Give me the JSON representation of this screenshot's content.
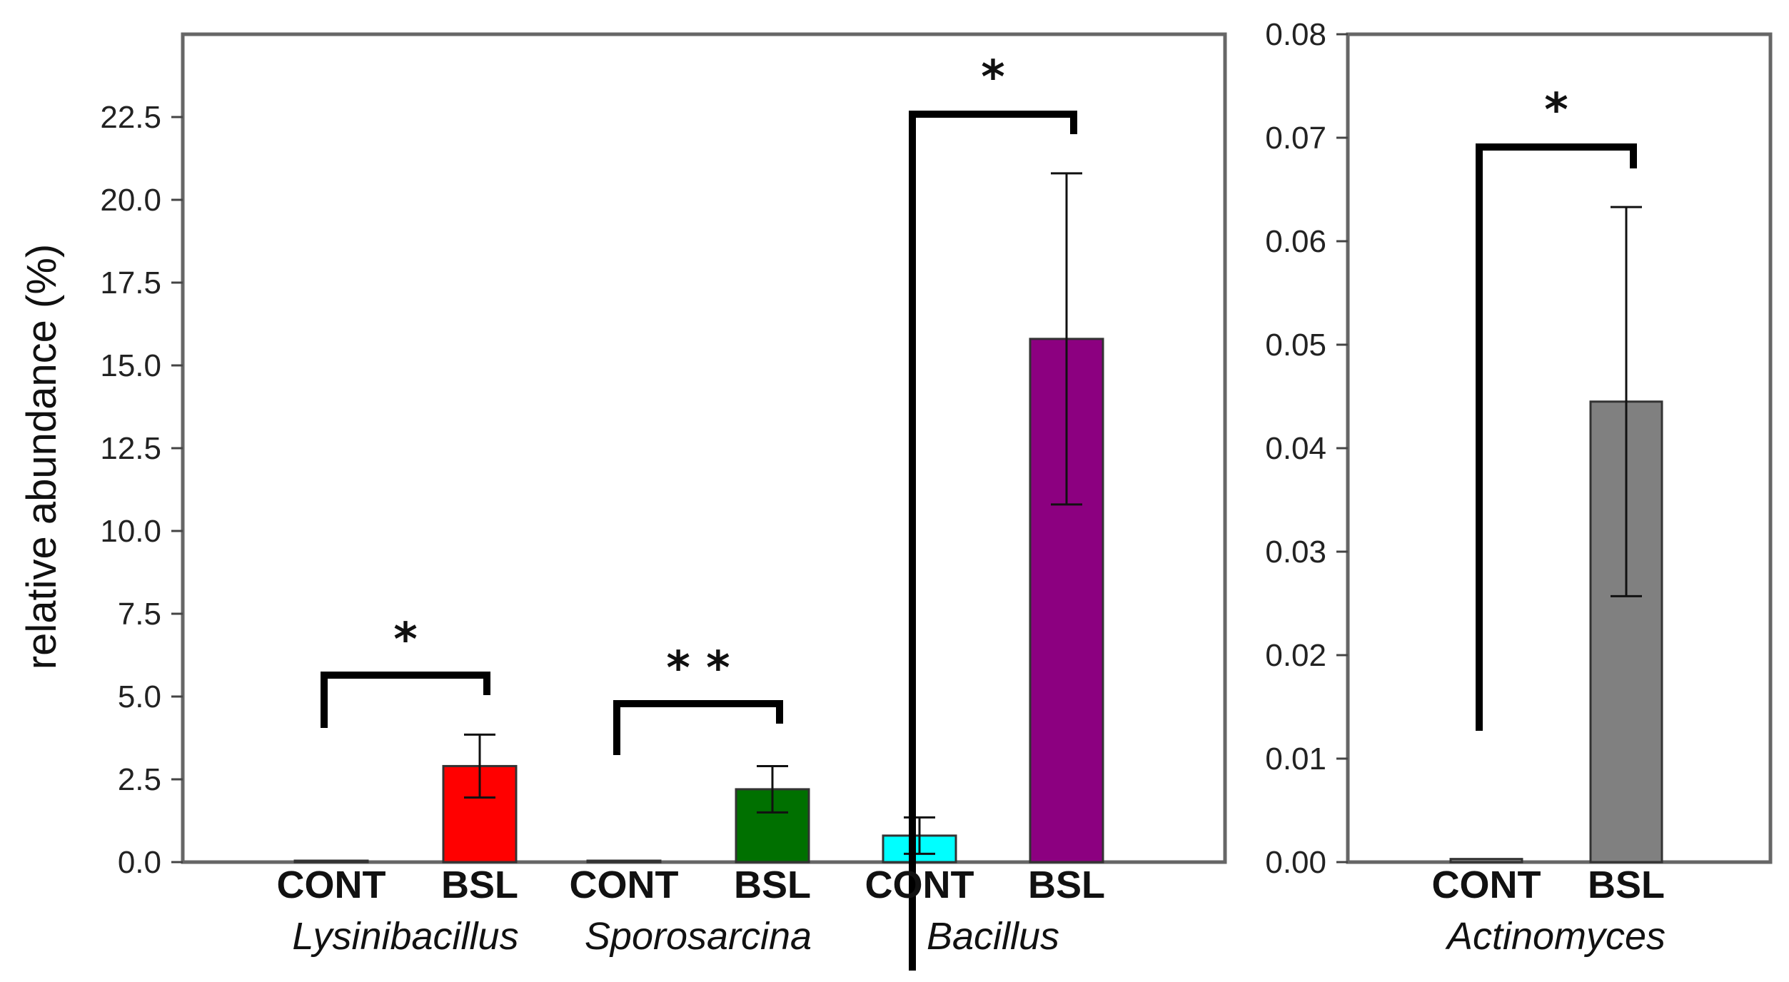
{
  "chart_data": [
    {
      "type": "bar",
      "ylabel": "relative abundance (%)",
      "ylim": [
        0,
        25
      ],
      "yticks": [
        "0.0",
        "2.5",
        "5.0",
        "7.5",
        "10.0",
        "12.5",
        "15.0",
        "17.5",
        "20.0",
        "22.5"
      ],
      "ytick_values": [
        0,
        2.5,
        5,
        7.5,
        10,
        12.5,
        15,
        17.5,
        20,
        22.5
      ],
      "groups": [
        {
          "genus": "Lysinibacillus",
          "bars": [
            {
              "label": "CONT",
              "value": 0.02,
              "error": 0,
              "color": "#ff0000"
            },
            {
              "label": "BSL",
              "value": 2.9,
              "error": 0.95,
              "color": "#ff0000"
            }
          ],
          "significance": "*"
        },
        {
          "genus": "Sporosarcina",
          "bars": [
            {
              "label": "CONT",
              "value": 0.02,
              "error": 0,
              "color": "#007000"
            },
            {
              "label": "BSL",
              "value": 2.2,
              "error": 0.7,
              "color": "#007000"
            }
          ],
          "significance": "* *"
        },
        {
          "genus": "Bacillus",
          "bars": [
            {
              "label": "CONT",
              "value": 0.8,
              "error": 0.55,
              "color": "#00ffff"
            },
            {
              "label": "BSL",
              "value": 15.8,
              "error": 5.0,
              "color": "#8c0080"
            }
          ],
          "significance": "*"
        }
      ]
    },
    {
      "type": "bar",
      "ylabel": "",
      "ylim": [
        0,
        0.08
      ],
      "yticks": [
        "0.00",
        "0.01",
        "0.02",
        "0.03",
        "0.04",
        "0.05",
        "0.06",
        "0.07",
        "0.08"
      ],
      "ytick_values": [
        0,
        0.01,
        0.02,
        0.03,
        0.04,
        0.05,
        0.06,
        0.07,
        0.08
      ],
      "groups": [
        {
          "genus": "Actinomyces",
          "bars": [
            {
              "label": "CONT",
              "value": 0.0003,
              "error": 0,
              "color": "#808080"
            },
            {
              "label": "BSL",
              "value": 0.0445,
              "error": 0.0188,
              "color": "#808080"
            }
          ],
          "significance": "*"
        }
      ]
    }
  ]
}
